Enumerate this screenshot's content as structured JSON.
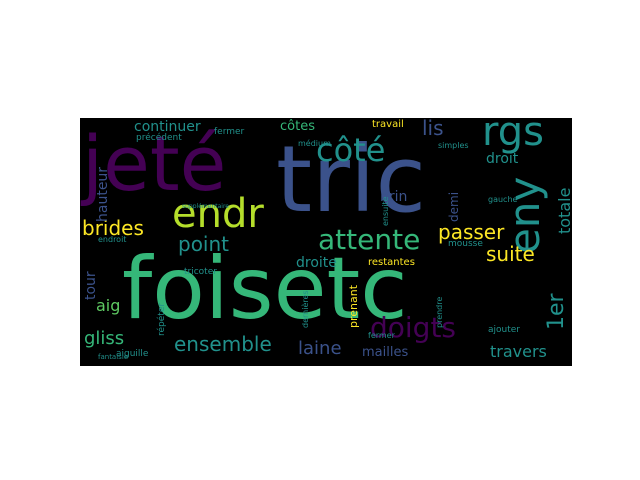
{
  "words": {
    "foisetc": "foisetc",
    "jete": "jeté",
    "tric": "tric",
    "endr": "endr",
    "rgs": "rgs",
    "eny": "eny",
    "cote": "côté",
    "attente": "attente",
    "doigts": "doigts",
    "ensemble": "ensemble",
    "point": "point",
    "brides": "brides",
    "suite": "suite",
    "passer": "passer",
    "lis": "lis",
    "ler": "1er",
    "laine": "laine",
    "gliss": "gliss",
    "travers": "travers",
    "continuer": "continuer",
    "cotes": "côtes",
    "droite": "droite",
    "mailles": "mailles",
    "totale": "totale",
    "droit": "droit",
    "hauteur": "hauteur",
    "tour": "tour",
    "aig": "aig",
    "brin": "brin",
    "demi": "demi",
    "prenant": "prenant",
    "restantes": "restantes",
    "travail": "travail",
    "aiguille": "aiguille",
    "precedent": "précédent",
    "fermer": "fermer",
    "fermer2": "fermer",
    "medium": "médium",
    "simples": "simples",
    "gauche": "gauche",
    "mousse": "mousse",
    "ajouter": "ajouter",
    "ensuite": "ensuite",
    "prendre": "prendre",
    "repeter": "répéter",
    "tricoter": "tricoter",
    "endroit": "endroit",
    "fantaisie": "fantaisie",
    "dernieres": "dernières",
    "supplementaire": "supplémentaire"
  }
}
